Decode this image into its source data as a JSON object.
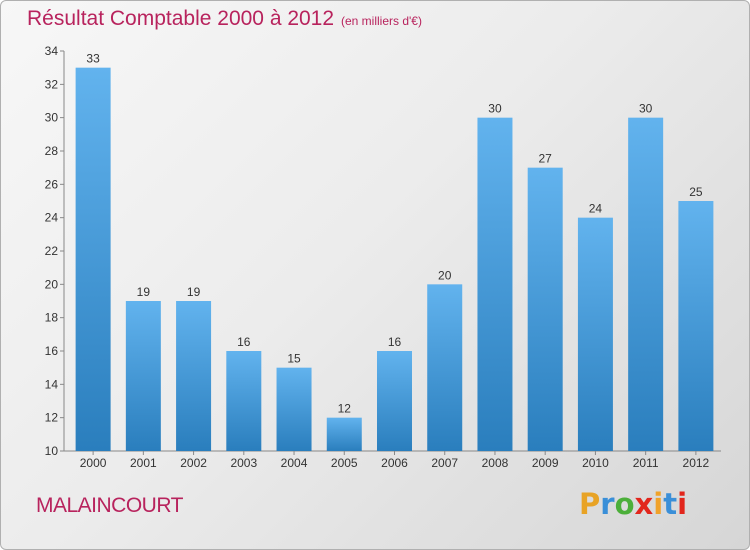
{
  "header": {
    "title": "Résultat Comptable 2000 à 2012",
    "subtitle": "(en milliers d'€)"
  },
  "footer": {
    "commune": "MALAINCOURT",
    "brand": "Proxiti"
  },
  "colors": {
    "title": "#b8235d",
    "bar_top": "#62b3ee",
    "bar_bottom": "#2a7ebd",
    "brand_letters": [
      "#e8a325",
      "#3a8fd8",
      "#4caf3a",
      "#e2261c",
      "#f0a22a",
      "#3a8fd8",
      "#e2261c"
    ]
  },
  "chart_data": {
    "type": "bar",
    "title": "Résultat Comptable 2000 à 2012",
    "subtitle": "(en milliers d'€)",
    "xlabel": "",
    "ylabel": "",
    "categories": [
      "2000",
      "2001",
      "2002",
      "2003",
      "2004",
      "2005",
      "2006",
      "2007",
      "2008",
      "2009",
      "2010",
      "2011",
      "2012"
    ],
    "values": [
      33,
      19,
      19,
      16,
      15,
      12,
      16,
      20,
      30,
      27,
      24,
      30,
      25
    ],
    "ylim": [
      10,
      34
    ],
    "yticks": [
      10,
      12,
      14,
      16,
      18,
      20,
      22,
      24,
      26,
      28,
      30,
      32,
      34
    ],
    "grid": false,
    "legend": "none"
  }
}
